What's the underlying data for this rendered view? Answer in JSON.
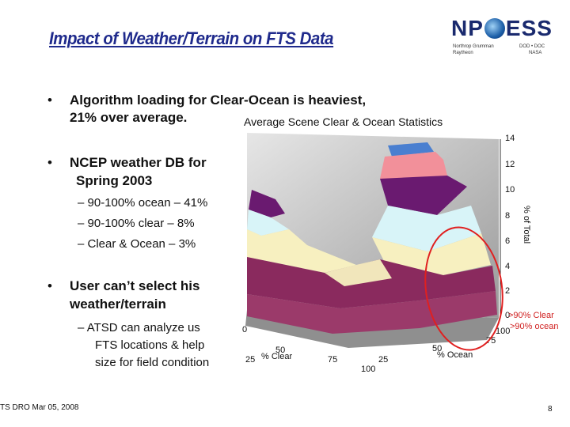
{
  "slide": {
    "title": "Impact of Weather/Terrain on FTS Data",
    "bullets": [
      {
        "line1": "Algorithm loading for Clear-Ocean is heaviest,",
        "line2": "21% over average."
      },
      {
        "line1": "NCEP weather DB for",
        "line2": "Spring 2003"
      },
      {
        "line1": "User can’t select his",
        "line2": "weather/terrain"
      }
    ],
    "sub_bullets_group1": [
      "90-100% ocean – 41%",
      "90-100% clear – 8%",
      "Clear & Ocean – 3%"
    ],
    "sub_bullet_group2": {
      "line1": "ATSD can analyze us",
      "line2": "FTS locations & help",
      "line3": "size for field condition"
    },
    "footer_left": "TS DRO Mar 05, 2008",
    "page_number": "8"
  },
  "logo": {
    "brand_left": "NP",
    "brand_right": "ESS",
    "tagline_left": "Northrop Grumman",
    "tagline_right": "DOD • DOC",
    "tagline_left2": "Raytheon",
    "tagline_right2": "NASA"
  },
  "chart_data": {
    "type": "surface3d",
    "title": "Average Scene Clear & Ocean Statistics",
    "zlabel": "% of Total",
    "xlabel": "% Clear",
    "ylabel": "% Ocean",
    "z_ticks": [
      "0",
      "2",
      "4",
      "6",
      "8",
      "10",
      "12",
      "14"
    ],
    "x_ticks": [
      "0",
      "25",
      "50",
      "75",
      "100"
    ],
    "y_ticks": [
      "25",
      "50",
      "75",
      "100"
    ],
    "annotation_line1": ">90% Clear",
    "annotation_line2": ">90% ocean",
    "bands": [
      {
        "range": "0-2",
        "color": "#9b3a6a"
      },
      {
        "range": "2-4",
        "color": "#8a2a5e"
      },
      {
        "range": "4-6",
        "color": "#f7f0c0"
      },
      {
        "range": "6-8",
        "color": "#d8f4f8"
      },
      {
        "range": "8-10",
        "color": "#6a1a70"
      },
      {
        "range": "10-12",
        "color": "#f2909a"
      },
      {
        "range": "12-14",
        "color": "#4a7fd0"
      }
    ]
  }
}
